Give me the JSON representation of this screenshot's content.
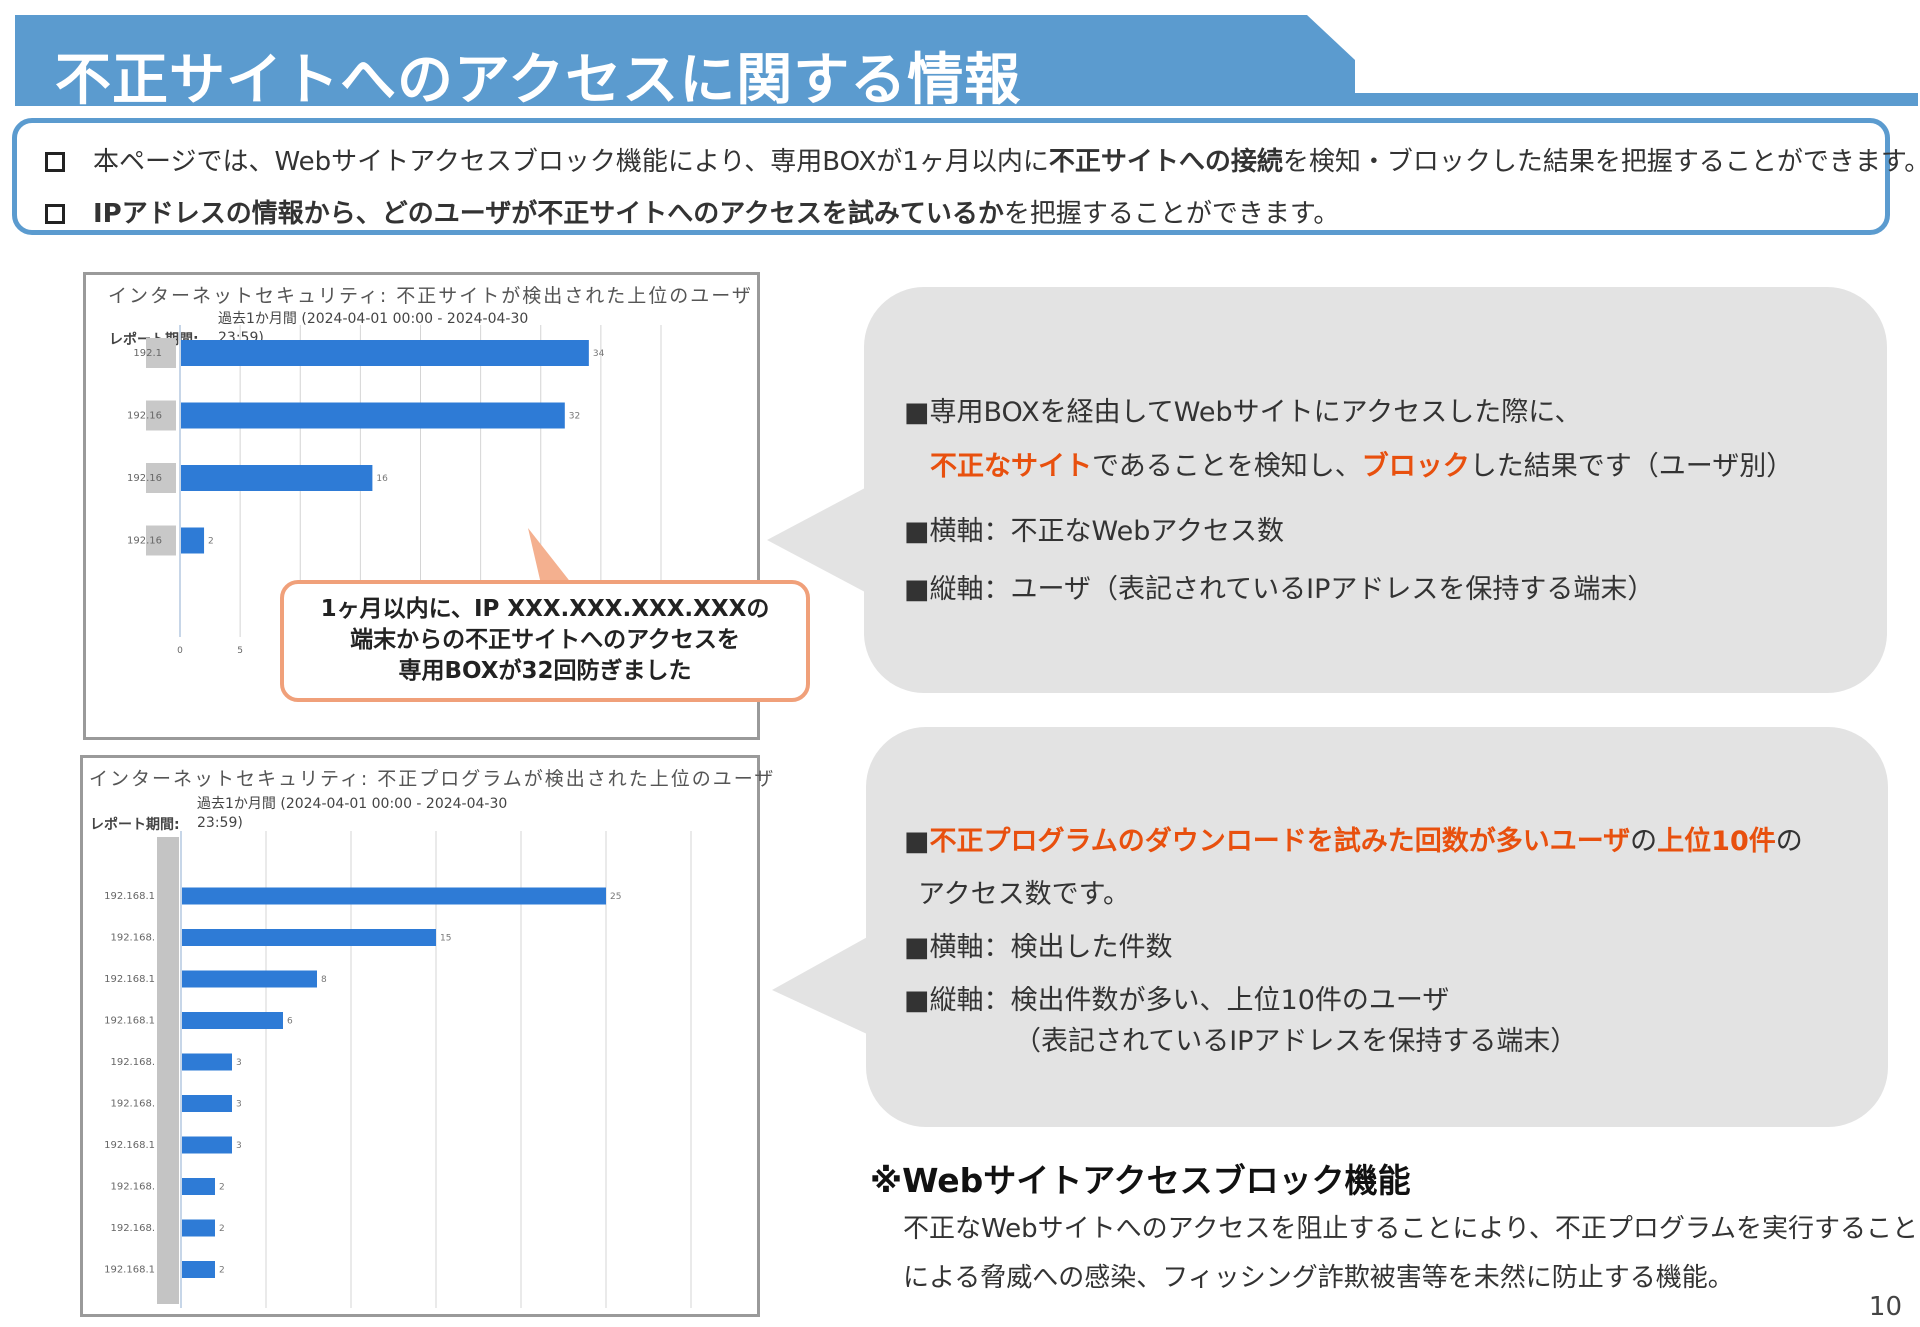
{
  "header": {
    "title": "不正サイトへのアクセスに関する情報",
    "accent_color": "#5b9bcf"
  },
  "intro": {
    "line1": {
      "pre": "本ページでは、Webサイトアクセスブロック機能により、専用BOXが1ヶ月以内に",
      "bold": "不正サイトへの接続",
      "post": "を検知・ブロックした結果を把握することができます。"
    },
    "line2": {
      "bold": "IPアドレスの情報から、どのユーザが不正サイトへのアクセスを試みているか",
      "post": "を把握することができます。"
    }
  },
  "chart1": {
    "title": "インターネットセキュリティ: 不正サイトが検出された上位のユーザ",
    "period_label": "レポート期間:",
    "period_value_1": "過去1か月間 (2024-04-01 00:00 - 2024-04-30",
    "period_value_2": "23:59)"
  },
  "chart2": {
    "title": "インターネットセキュリティ: 不正プログラムが検出された上位のユーザ",
    "period_label": "レポート期間:",
    "period_value_1": "過去1か月間 (2024-04-01 00:00 - 2024-04-30",
    "period_value_2": "23:59)"
  },
  "chart_data": [
    {
      "type": "bar",
      "orientation": "horizontal",
      "title": "インターネットセキュリティ: 不正サイトが検出された上位のユーザ",
      "categories": [
        "192.1",
        "192.16",
        "192.16",
        "192.16"
      ],
      "values": [
        34,
        32,
        16,
        2
      ],
      "xlim": [
        0,
        40
      ],
      "xticks": [
        0,
        5,
        10,
        15,
        20,
        25,
        30,
        35,
        40
      ],
      "grid": true,
      "bar_color": "#2e7bd6"
    },
    {
      "type": "bar",
      "orientation": "horizontal",
      "title": "インターネットセキュリティ: 不正プログラムが検出された上位のユーザ",
      "categories": [
        "192.168.1",
        "192.168.",
        "192.168.1",
        "192.168.1",
        "192.168.",
        "192.168.",
        "192.168.1",
        "192.168.",
        "192.168.",
        "192.168.1"
      ],
      "values": [
        25,
        15,
        8,
        6,
        3,
        3,
        3,
        2,
        2,
        2
      ],
      "xlim": [
        0,
        30
      ],
      "xticks": [
        0,
        5,
        10,
        15,
        20,
        25,
        30
      ],
      "grid": true,
      "bar_color": "#2e7bd6"
    }
  ],
  "callout": {
    "line1": "1ヶ月以内に、IP XXX.XXX.XXX.XXXの",
    "line2": "端末からの不正サイトへのアクセスを",
    "line3": "専用BOXが32回防ぎました"
  },
  "bubble1": {
    "l1": "■専用BOXを経由してWebサイトにアクセスした際に、",
    "l2_o1": "不正なサイト",
    "l2_m": "であることを検知し、",
    "l2_o2": "ブロック",
    "l2_e": "した結果です（ユーザ別）",
    "l3": "■横軸：不正なWebアクセス数",
    "l4": "■縦軸：ユーザ（表記されているIPアドレスを保持する端末）"
  },
  "bubble2": {
    "l1_pre": "■",
    "l1_o1": "不正プログラムのダウンロードを試みた回数が多いユーザ",
    "l1_m": "の",
    "l1_o2": "上位10件",
    "l1_e": "の",
    "l2": "アクセス数です。",
    "l3": "■横軸：検出した件数",
    "l4": "■縦軸：検出件数が多い、上位10件のユーザ",
    "l5": "（表記されているIPアドレスを保持する端末）"
  },
  "note": {
    "title": "※Webサイトアクセスブロック機能",
    "body1": "不正なWebサイトへのアクセスを阻止することにより、不正プログラムを実行すること",
    "body2": "による脅威への感染、フィッシング詐欺被害等を未然に防止する機能。"
  },
  "page_number": "10"
}
